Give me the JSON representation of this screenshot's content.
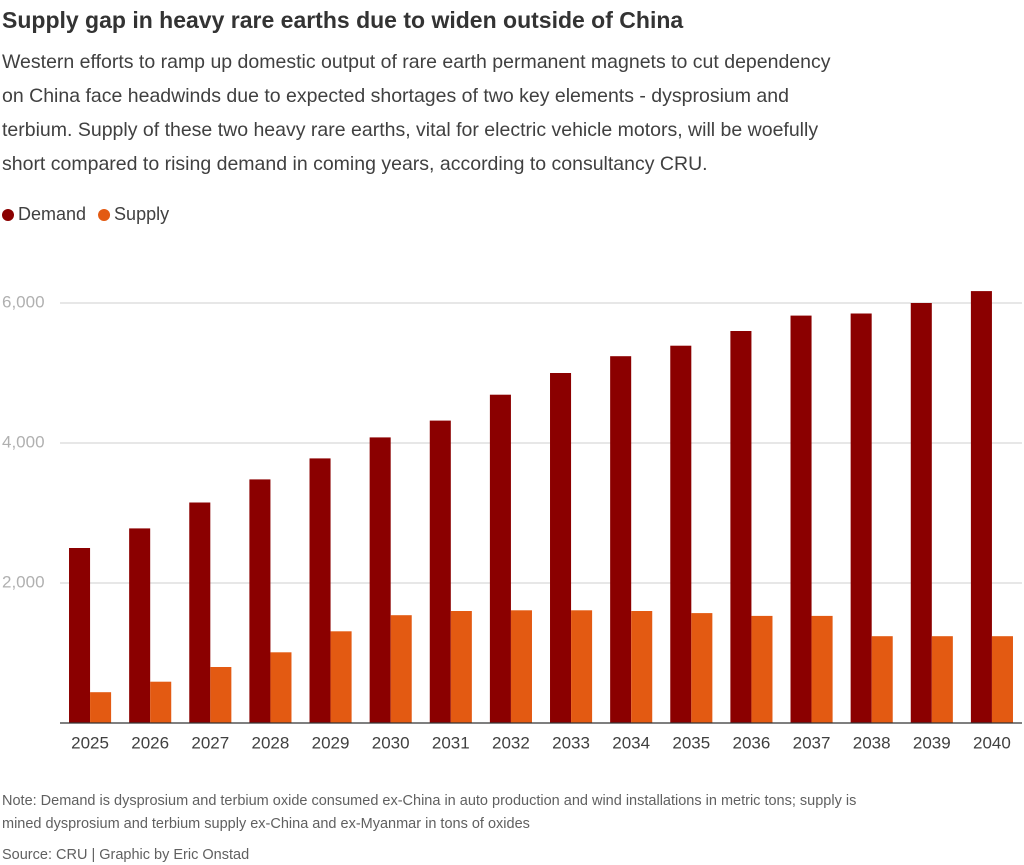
{
  "chart_data": {
    "type": "bar",
    "title": "Supply gap in heavy rare earths due to widen outside of China",
    "subtitle": [
      "Western efforts to ramp up domestic output of rare earth permanent magnets to cut dependency",
      "on China face headwinds due to expected shortages of two key elements - dysprosium and",
      "terbium. Supply of these two heavy rare earths, vital for electric vehicle motors, will be woefully",
      "short compared to rising demand in coming years, according to consultancy CRU."
    ],
    "categories": [
      "2025",
      "2026",
      "2027",
      "2028",
      "2029",
      "2030",
      "2031",
      "2032",
      "2033",
      "2034",
      "2035",
      "2036",
      "2037",
      "2038",
      "2039",
      "2040"
    ],
    "series": [
      {
        "name": "Demand",
        "color": "#8b0000",
        "values": [
          2500,
          2780,
          3150,
          3480,
          3780,
          4080,
          4320,
          4690,
          5000,
          5240,
          5390,
          5600,
          5820,
          5850,
          6000,
          6170
        ]
      },
      {
        "name": "Supply",
        "color": "#e35a12",
        "values": [
          440,
          590,
          800,
          1010,
          1310,
          1540,
          1600,
          1610,
          1610,
          1600,
          1570,
          1530,
          1530,
          1240,
          1240,
          1240
        ]
      }
    ],
    "ylim": [
      0,
      6300
    ],
    "yticks": [
      {
        "value": 2000,
        "label": "2,000"
      },
      {
        "value": 4000,
        "label": "4,000"
      },
      {
        "value": 6000,
        "label": "6,000"
      }
    ],
    "grid": true,
    "legend": "top-left",
    "note": [
      "Note: Demand is dysprosium and terbium oxide consumed ex-China in auto production and wind installations in metric tons; supply is",
      "mined dysprosium and terbium supply ex-China and ex-Myanmar in tons of oxides"
    ],
    "source": "Source: CRU | Graphic by Eric Onstad"
  }
}
